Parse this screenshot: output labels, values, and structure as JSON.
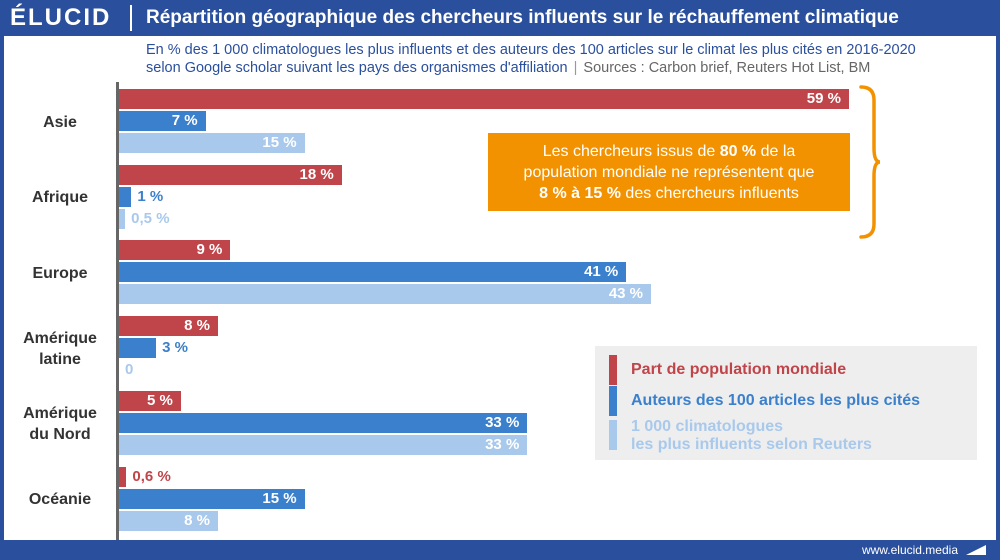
{
  "header": {
    "logo": "ÉLUCID",
    "title": "Répartition géographique des chercheurs influents sur le réchauffement climatique",
    "subtitle_line1": "En % des 1 000 climatologues les plus influents et des auteurs des 100 articles sur le climat les plus cités en 2016-2020",
    "subtitle_line2": "selon Google scholar suivant les pays des organismes d'affiliation",
    "sources": "Sources : Carbon brief, Reuters Hot List, BM"
  },
  "footer": {
    "site": "www.elucid.media"
  },
  "colors": {
    "population": "#c0454a",
    "authors": "#3b80cc",
    "reuters": "#a9c9ec",
    "brand": "#2a4f9d",
    "callout": "#f39200"
  },
  "callout": {
    "part1": "Les chercheurs issus de ",
    "bold1": "80 %",
    "part2": " de la",
    "line2": "population mondiale ne représentent que",
    "bold2": "8 % à 15 %",
    "part3": " des chercheurs influents"
  },
  "chart_data": {
    "type": "bar",
    "orientation": "horizontal",
    "categories": [
      "Asie",
      "Afrique",
      "Europe",
      "Amérique latine",
      "Amérique du Nord",
      "Océanie"
    ],
    "category_lines": [
      [
        "Asie"
      ],
      [
        "Afrique"
      ],
      [
        "Europe"
      ],
      [
        "Amérique",
        "latine"
      ],
      [
        "Amérique",
        "du Nord"
      ],
      [
        "Océanie"
      ]
    ],
    "series": [
      {
        "name": "Part de population mondiale",
        "values": [
          59,
          18,
          9,
          8,
          5,
          0.6
        ],
        "labels": [
          "59 %",
          "18 %",
          "9 %",
          "8 %",
          "5 %",
          "0,6 %"
        ]
      },
      {
        "name": "Auteurs des 100 articles les plus cités",
        "values": [
          7,
          1,
          41,
          3,
          33,
          15
        ],
        "labels": [
          "7 %",
          "1 %",
          "41 %",
          "3 %",
          "33 %",
          "15 %"
        ]
      },
      {
        "name_lines": [
          "1 000 climatologues",
          "les plus influents selon Reuters"
        ],
        "values": [
          15,
          0.5,
          43,
          0,
          33,
          8
        ],
        "labels": [
          "15 %",
          "0,5 %",
          "43 %",
          "0",
          "33 %",
          "8 %"
        ]
      }
    ],
    "xlim": [
      0,
      59
    ]
  }
}
